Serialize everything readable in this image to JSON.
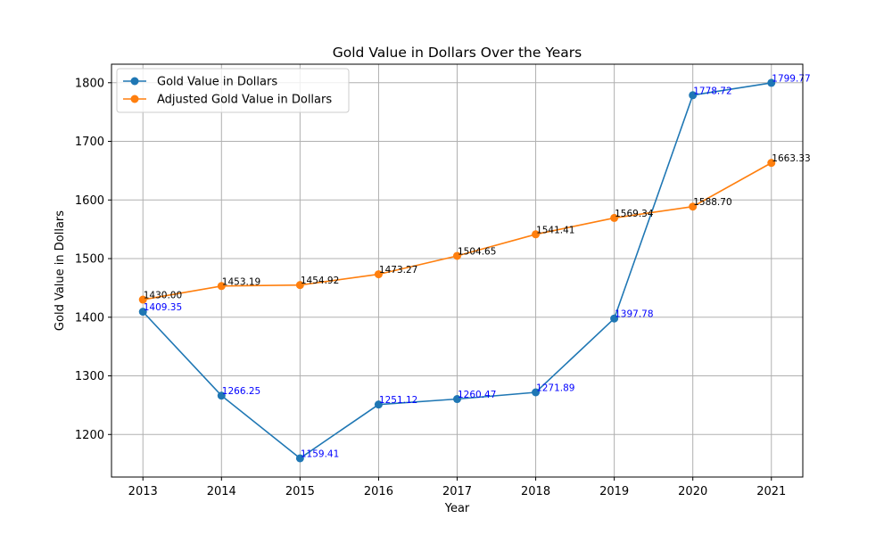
{
  "chart_data": {
    "type": "line",
    "title": "Gold Value in Dollars Over the Years",
    "xlabel": "Year",
    "ylabel": "Gold Value in Dollars",
    "x": [
      "2013",
      "2014",
      "2015",
      "2016",
      "2017",
      "2018",
      "2019",
      "2020",
      "2021"
    ],
    "x_ticks": [
      "2013",
      "2014",
      "2015",
      "2016",
      "2017",
      "2018",
      "2019",
      "2020",
      "2021"
    ],
    "y_ticks": [
      "1200",
      "1300",
      "1400",
      "1500",
      "1600",
      "1700",
      "1800"
    ],
    "xlim": [
      2012.6,
      2021.4
    ],
    "ylim": [
      1127.4,
      1831.6
    ],
    "grid": true,
    "legend_position": "top-left",
    "series": [
      {
        "name": "Gold Value in Dollars",
        "color": "#1f77b4",
        "label_color": "#0000ff",
        "values": [
          1409.35,
          1266.25,
          1159.41,
          1251.12,
          1260.47,
          1271.89,
          1397.78,
          1778.72,
          1799.77
        ],
        "labels": [
          "1409.35",
          "1266.25",
          "1159.41",
          "1251.12",
          "1260.47",
          "1271.89",
          "1397.78",
          "1778.72",
          "1799.77"
        ]
      },
      {
        "name": "Adjusted Gold Value in Dollars",
        "color": "#ff7f0e",
        "label_color": "#000000",
        "values": [
          1430.0,
          1453.19,
          1454.92,
          1473.27,
          1504.65,
          1541.41,
          1569.34,
          1588.7,
          1663.33
        ],
        "labels": [
          "1430.00",
          "1453.19",
          "1454.92",
          "1473.27",
          "1504.65",
          "1541.41",
          "1569.34",
          "1588.70",
          "1663.33"
        ]
      }
    ]
  }
}
